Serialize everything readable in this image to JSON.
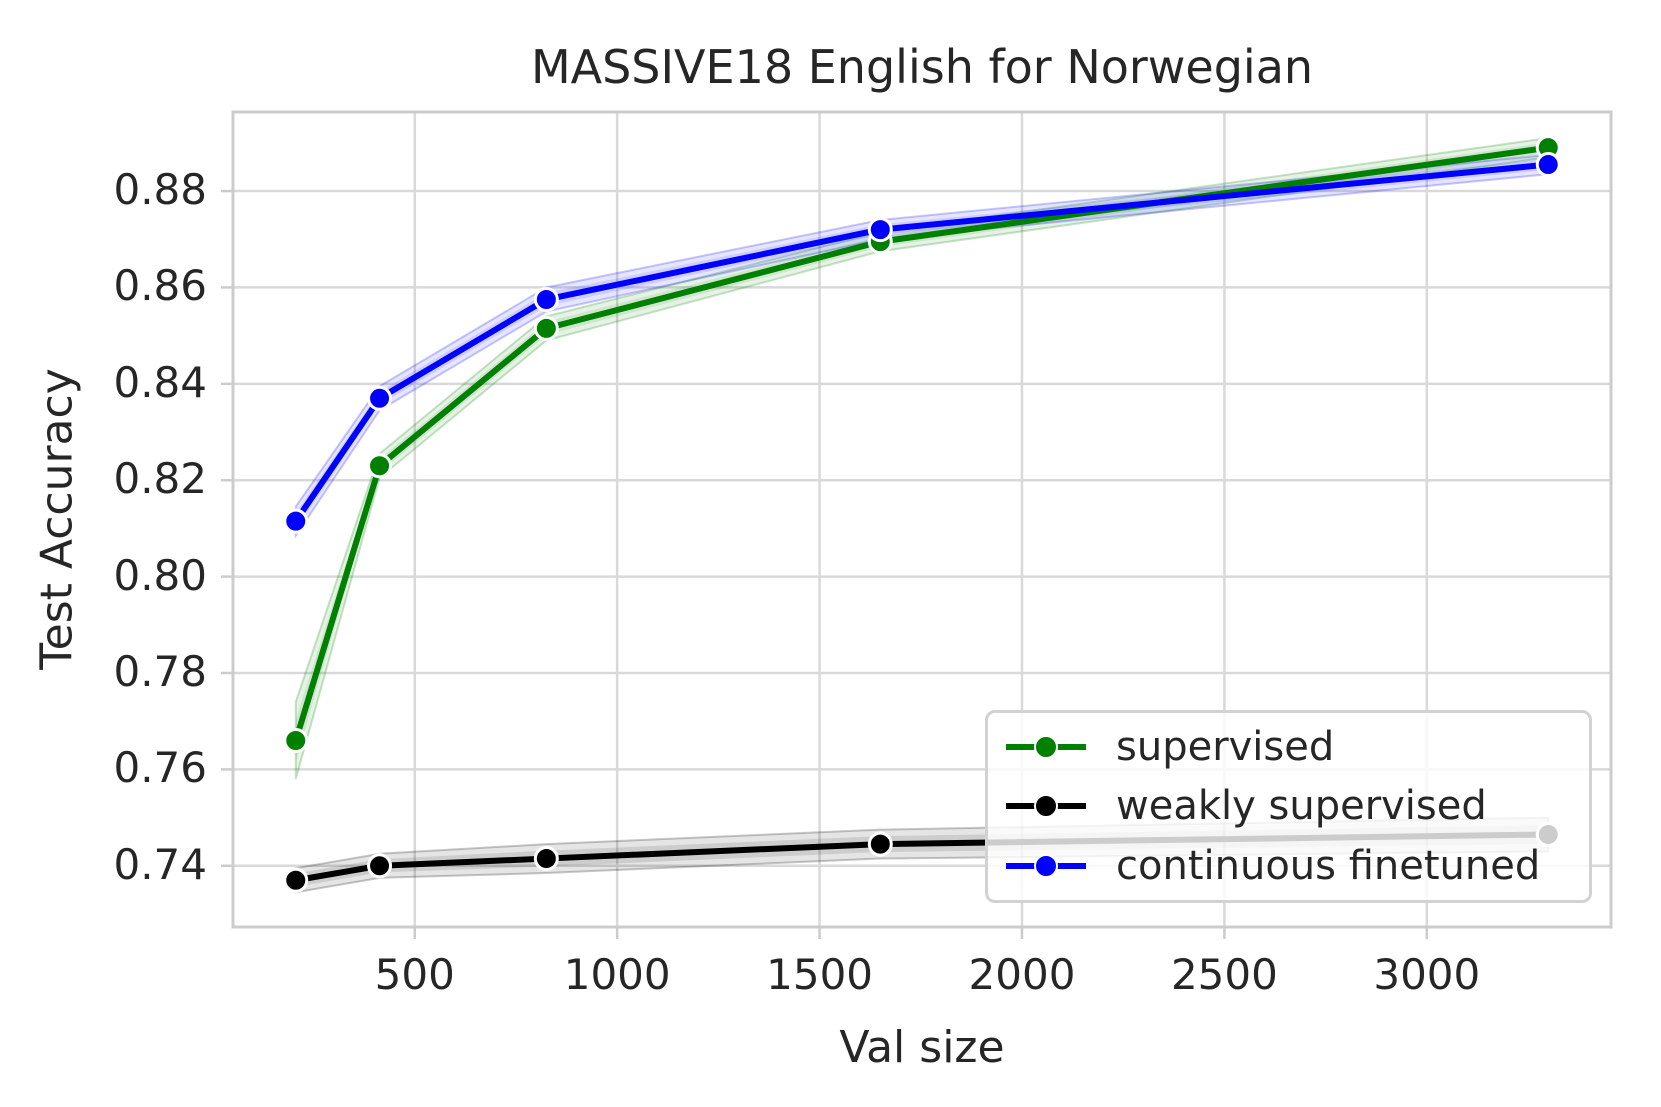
{
  "figure": {
    "title": "MASSIVE18 English for Norwegian",
    "xlabel": "Val size",
    "ylabel": "Test Accuracy"
  },
  "chart_data": {
    "type": "line",
    "title": "MASSIVE18 English for Norwegian",
    "xlabel": "Val size",
    "ylabel": "Test Accuracy",
    "x": [
      206,
      413,
      825,
      1650,
      3300
    ],
    "series": [
      {
        "name": "supervised",
        "color": "#008000",
        "values": [
          0.766,
          0.823,
          0.8515,
          0.8695,
          0.889
        ],
        "ci": [
          0.008,
          0.0025,
          0.0025,
          0.002,
          0.002
        ]
      },
      {
        "name": "weakly supervised",
        "color": "#000000",
        "values": [
          0.737,
          0.74,
          0.7415,
          0.7445,
          0.7465
        ],
        "ci": [
          0.0025,
          0.0025,
          0.003,
          0.003,
          0.0035
        ]
      },
      {
        "name": "continuous finetuned",
        "color": "#0000ff",
        "values": [
          0.8115,
          0.837,
          0.8575,
          0.872,
          0.8855
        ],
        "ci": [
          0.003,
          0.0025,
          0.0025,
          0.002,
          0.002
        ]
      }
    ],
    "xlim": [
      51,
      3455
    ],
    "ylim": [
      0.7273,
      0.8964
    ],
    "xticks": [
      500,
      1000,
      1500,
      2000,
      2500,
      3000
    ],
    "xtick_labels": [
      "500",
      "1000",
      "1500",
      "2000",
      "2500",
      "3000"
    ],
    "yticks": [
      0.74,
      0.76,
      0.78,
      0.8,
      0.82,
      0.84,
      0.86,
      0.88
    ],
    "ytick_labels": [
      "0.74",
      "0.76",
      "0.78",
      "0.80",
      "0.82",
      "0.84",
      "0.86",
      "0.88"
    ],
    "grid": true,
    "legend_position": "lower right"
  },
  "legend": {
    "entries": [
      {
        "label": "supervised",
        "color": "#008000"
      },
      {
        "label": "weakly supervised",
        "color": "#000000"
      },
      {
        "label": "continuous finetuned",
        "color": "#0000ff"
      }
    ]
  },
  "styles": {
    "grid_color": "#d9d9d9",
    "spine_color": "#cccccc",
    "text_color": "#262626",
    "marker_edge_color": "#ffffff"
  }
}
